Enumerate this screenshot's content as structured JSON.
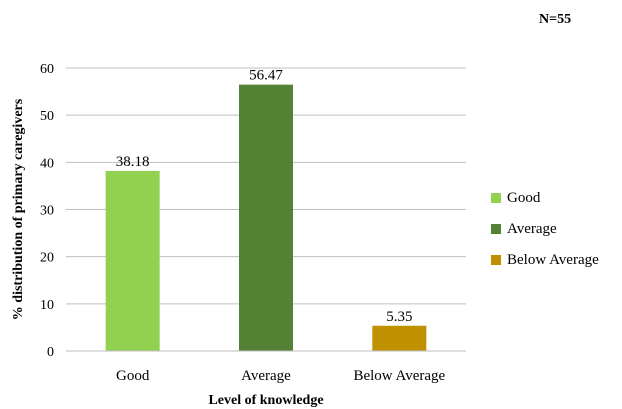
{
  "sample_note": "N=55",
  "chart_data": {
    "type": "bar",
    "categories": [
      "Good",
      "Average",
      "Below Average"
    ],
    "values": [
      38.18,
      56.47,
      5.35
    ],
    "value_labels": [
      "38.18",
      "56.47",
      "5.35"
    ],
    "colors": [
      "#92d050",
      "#548235",
      "#bf9000"
    ],
    "title": "",
    "xlabel": "Level of knowledge",
    "ylabel": "% distribution of primary caregivers",
    "ylim": [
      0,
      60
    ],
    "yticks": [
      0,
      10,
      20,
      30,
      40,
      50,
      60
    ],
    "grid": "horizontal",
    "legend": {
      "placement": "right",
      "entries": [
        "Good",
        "Average",
        "Below Average"
      ]
    }
  }
}
